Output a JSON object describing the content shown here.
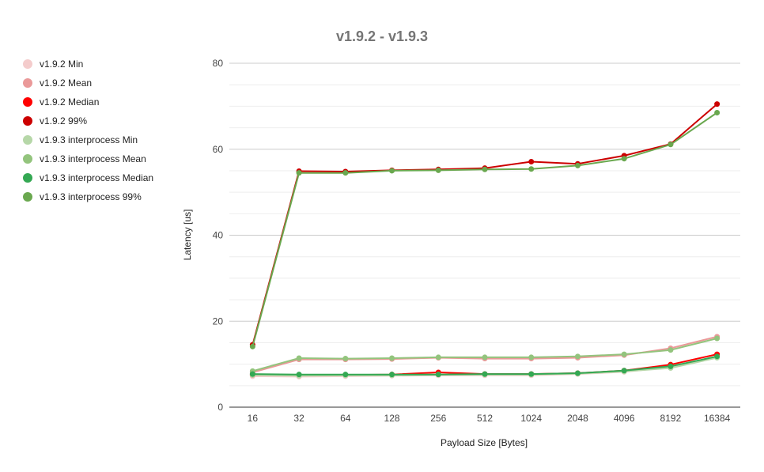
{
  "chart_data": {
    "type": "line",
    "title": "v1.9.2 - v1.9.3",
    "xlabel": "Payload Size [Bytes]",
    "ylabel": "Latency [us]",
    "ylim": [
      0,
      80
    ],
    "yticks": [
      0,
      20,
      40,
      60,
      80
    ],
    "grid": true,
    "legend_position": "left",
    "categories": [
      "16",
      "32",
      "64",
      "128",
      "256",
      "512",
      "1024",
      "2048",
      "4096",
      "8192",
      "16384"
    ],
    "series": [
      {
        "name": "v1.9.2 Min",
        "color": "#f4cccc",
        "values": [
          7.2,
          7.1,
          7.2,
          7.3,
          7.4,
          7.4,
          7.4,
          7.7,
          8.2,
          9.3,
          11.6
        ]
      },
      {
        "name": "v1.9.2 Mean",
        "color": "#ea9999",
        "values": [
          8.1,
          11.1,
          11.1,
          11.2,
          11.5,
          11.3,
          11.3,
          11.5,
          12.1,
          13.7,
          16.4
        ]
      },
      {
        "name": "v1.9.2 Median",
        "color": "#ff0000",
        "values": [
          7.5,
          7.5,
          7.5,
          7.6,
          8.1,
          7.7,
          7.7,
          7.9,
          8.5,
          9.9,
          12.3
        ]
      },
      {
        "name": "v1.9.2 99%",
        "color": "#cc0000",
        "values": [
          14.5,
          54.9,
          54.8,
          55.1,
          55.3,
          55.6,
          57.1,
          56.6,
          58.5,
          61.2,
          70.5
        ]
      },
      {
        "name": "v1.9.3 interprocess Min",
        "color": "#b6d7a8",
        "values": [
          7.5,
          7.3,
          7.4,
          7.4,
          7.6,
          7.6,
          7.6,
          7.8,
          8.3,
          9.1,
          11.5
        ]
      },
      {
        "name": "v1.9.3 interprocess Mean",
        "color": "#93c47d",
        "values": [
          8.4,
          11.4,
          11.3,
          11.4,
          11.6,
          11.6,
          11.6,
          11.8,
          12.3,
          13.3,
          16.0
        ]
      },
      {
        "name": "v1.9.3 interprocess Median",
        "color": "#34a853",
        "values": [
          7.7,
          7.6,
          7.6,
          7.6,
          7.6,
          7.7,
          7.7,
          7.9,
          8.5,
          9.5,
          11.8
        ]
      },
      {
        "name": "v1.9.3 interprocess 99%",
        "color": "#6aa84f",
        "values": [
          14.1,
          54.5,
          54.5,
          55.0,
          55.1,
          55.3,
          55.4,
          56.2,
          57.8,
          61.1,
          68.5
        ]
      }
    ]
  }
}
